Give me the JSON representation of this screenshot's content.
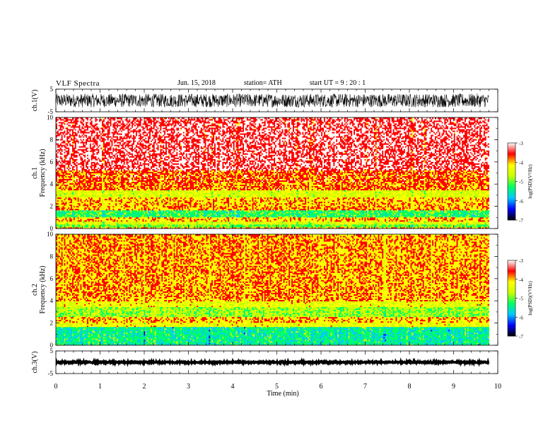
{
  "header": {
    "title": "VLF  Spectra",
    "date": "Jun. 15, 2018",
    "station": "station= ATH",
    "start": "start  UT  =    9  : 20 : 1"
  },
  "chart_data": [
    {
      "type": "line",
      "panel": "ch1-waveform",
      "ylabel": "ch.1(V)",
      "ylim": [
        -5,
        5
      ],
      "yticks": [
        "5",
        "-5"
      ],
      "xlim": [
        0,
        10
      ],
      "trace": "noise-band",
      "amplitude_range": [
        -3,
        3
      ]
    },
    {
      "type": "heatmap",
      "panel": "ch1-spectrogram",
      "ylabel": "ch.1\nFrequency  (kHz)",
      "ylabel_lines": [
        "ch.1",
        "Frequency  (kHz)"
      ],
      "ylim": [
        0,
        10
      ],
      "yticks": [
        "0",
        "2",
        "4",
        "6",
        "8",
        "10"
      ],
      "xlim": [
        0,
        9.8
      ],
      "bands": [
        {
          "from_khz": 0.0,
          "to_khz": 0.15,
          "level": -4.0
        },
        {
          "from_khz": 0.15,
          "to_khz": 0.4,
          "level": -5.0
        },
        {
          "from_khz": 0.4,
          "to_khz": 0.7,
          "level": -4.5
        },
        {
          "from_khz": 0.7,
          "to_khz": 1.05,
          "level": -4.0
        },
        {
          "from_khz": 1.05,
          "to_khz": 1.65,
          "level": -5.2
        },
        {
          "from_khz": 1.65,
          "to_khz": 2.1,
          "level": -3.9
        },
        {
          "from_khz": 2.1,
          "to_khz": 2.8,
          "level": -4.0
        },
        {
          "from_khz": 2.8,
          "to_khz": 3.5,
          "level": -4.5
        },
        {
          "from_khz": 3.5,
          "to_khz": 4.2,
          "level": -3.8
        },
        {
          "from_khz": 4.2,
          "to_khz": 5.3,
          "level": -3.7
        },
        {
          "from_khz": 5.3,
          "to_khz": 10.0,
          "level": -3.3
        }
      ],
      "colorbar": {
        "label": "log(PSD)(V²/Hz)",
        "range": [
          -7,
          -3
        ],
        "ticks": [
          "-3",
          "-4",
          "-5",
          "-6",
          "-7"
        ]
      }
    },
    {
      "type": "heatmap",
      "panel": "ch2-spectrogram",
      "ylabel": "ch.2\nFrequency  (kHz)",
      "ylabel_lines": [
        "ch.2",
        "Frequency  (kHz)"
      ],
      "ylim": [
        0,
        10
      ],
      "yticks": [
        "0",
        "2",
        "4",
        "6",
        "8",
        "10"
      ],
      "xlim": [
        0,
        9.8
      ],
      "bands": [
        {
          "from_khz": 0.0,
          "to_khz": 1.7,
          "level": -5.4
        },
        {
          "from_khz": 1.7,
          "to_khz": 2.0,
          "level": -4.3
        },
        {
          "from_khz": 2.0,
          "to_khz": 2.6,
          "level": -4.0
        },
        {
          "from_khz": 2.6,
          "to_khz": 3.5,
          "level": -4.8
        },
        {
          "from_khz": 3.5,
          "to_khz": 4.0,
          "level": -4.3
        },
        {
          "from_khz": 4.0,
          "to_khz": 10.0,
          "level": -3.9
        }
      ],
      "colorbar": {
        "label": "log(PSD)(V²/Hz)",
        "range": [
          -7,
          -3
        ],
        "ticks": [
          "-3",
          "-4",
          "-5",
          "-6",
          "-7"
        ]
      }
    },
    {
      "type": "line",
      "panel": "ch3-waveform",
      "ylabel": "ch.3(V)",
      "ylim": [
        -5,
        5
      ],
      "yticks": [
        "5",
        "-5"
      ],
      "xlim": [
        0,
        10
      ],
      "trace": "flat",
      "level": 0,
      "amplitude_range": [
        -0.3,
        0.3
      ]
    }
  ],
  "x_axis": {
    "label": "Time  (min)",
    "range": [
      0,
      10
    ],
    "ticks": [
      "0",
      "1",
      "2",
      "3",
      "4",
      "5",
      "6",
      "7",
      "8",
      "9",
      "10"
    ]
  },
  "colors": {
    "scale": [
      "#000000",
      "#0000ff",
      "#00c8ff",
      "#00ff64",
      "#c8ff00",
      "#ffff00",
      "#ff0000",
      "#ffffff"
    ],
    "waveform": "#000000"
  }
}
